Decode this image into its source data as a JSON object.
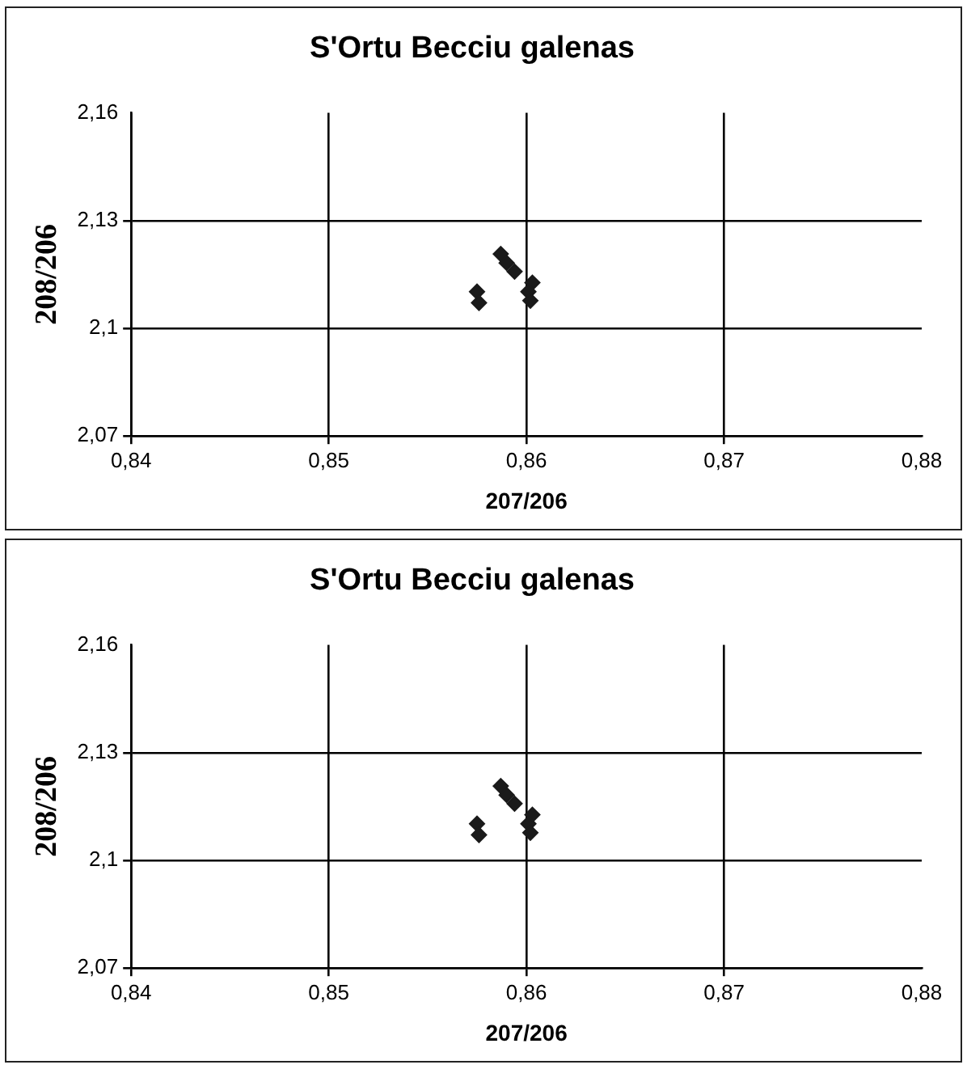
{
  "chart_data": [
    {
      "type": "scatter",
      "title": "S'Ortu Becciu galenas",
      "xlabel": "207/206",
      "ylabel": "208/206",
      "xlim": [
        0.84,
        0.88
      ],
      "ylim": [
        2.07,
        2.16
      ],
      "xticks": [
        {
          "value": 0.84,
          "label": "0,84"
        },
        {
          "value": 0.85,
          "label": "0,85"
        },
        {
          "value": 0.86,
          "label": "0,86"
        },
        {
          "value": 0.87,
          "label": "0,87"
        },
        {
          "value": 0.88,
          "label": "0,88"
        }
      ],
      "yticks": [
        {
          "value": 2.07,
          "label": "2,07"
        },
        {
          "value": 2.1,
          "label": "2,1"
        },
        {
          "value": 2.13,
          "label": "2,13"
        },
        {
          "value": 2.16,
          "label": "2,16"
        }
      ],
      "grid": true,
      "marker": "diamond",
      "legend": false,
      "series": [
        {
          "color": "#1a1a1a",
          "x": [
            0.8575,
            0.8576,
            0.8587,
            0.859,
            0.8594,
            0.8603,
            0.8601,
            0.8602
          ],
          "values": [
            2.1102,
            2.1071,
            2.1207,
            2.1182,
            2.1158,
            2.1127,
            2.1102,
            2.1077
          ]
        }
      ]
    },
    {
      "type": "scatter",
      "title": "S'Ortu Becciu galenas",
      "xlabel": "207/206",
      "ylabel": "208/206",
      "xlim": [
        0.84,
        0.88
      ],
      "ylim": [
        2.07,
        2.16
      ],
      "xticks": [
        {
          "value": 0.84,
          "label": "0,84"
        },
        {
          "value": 0.85,
          "label": "0,85"
        },
        {
          "value": 0.86,
          "label": "0,86"
        },
        {
          "value": 0.87,
          "label": "0,87"
        },
        {
          "value": 0.88,
          "label": "0,88"
        }
      ],
      "yticks": [
        {
          "value": 2.07,
          "label": "2,07"
        },
        {
          "value": 2.1,
          "label": "2,1"
        },
        {
          "value": 2.13,
          "label": "2,13"
        },
        {
          "value": 2.16,
          "label": "2,16"
        }
      ],
      "grid": true,
      "marker": "diamond",
      "legend": false,
      "series": [
        {
          "color": "#1a1a1a",
          "x": [
            0.8575,
            0.8576,
            0.8587,
            0.859,
            0.8594,
            0.8603,
            0.8601,
            0.8602
          ],
          "values": [
            2.1102,
            2.1071,
            2.1207,
            2.1182,
            2.1158,
            2.1127,
            2.1102,
            2.1077
          ]
        }
      ]
    }
  ]
}
